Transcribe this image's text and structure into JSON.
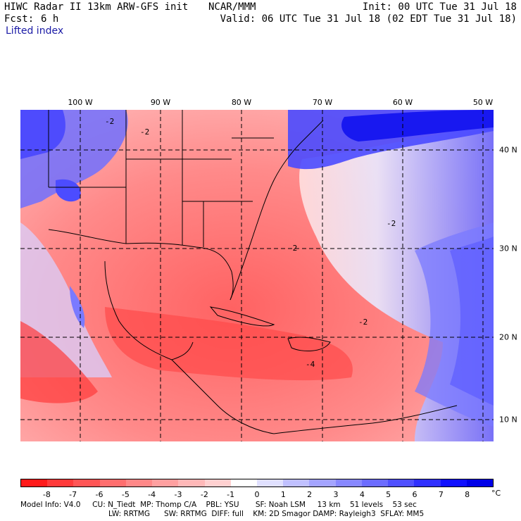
{
  "header": {
    "title": "HIWC Radar II 13km ARW-GFS init",
    "org": "NCAR/MMM",
    "init": "Init: 00 UTC Tue 31 Jul 18",
    "fcst_label": "Fcst:",
    "fcst_value": "6 h",
    "valid": "Valid: 06 UTC Tue 31 Jul 18 (02 EDT Tue 31 Jul 18)",
    "field": "Lifted index"
  },
  "map": {
    "lon_labels": [
      "100 W",
      "90 W",
      "80 W",
      "70 W",
      "60 W",
      "50 W"
    ],
    "lat_labels": [
      "40 N",
      "30 N",
      "20 N",
      "10 N"
    ],
    "contour_labels": [
      "-2",
      "-2",
      "-2",
      "-2",
      "-2",
      "-4"
    ]
  },
  "colorbar": {
    "labels": [
      "-8",
      "-7",
      "-6",
      "-5",
      "-4",
      "-3",
      "-2",
      "-1",
      "0",
      "1",
      "2",
      "3",
      "4",
      "5",
      "6",
      "7",
      "8"
    ],
    "unit": "°C",
    "colors": [
      "#ff1a1a",
      "#ff3a3a",
      "#ff5555",
      "#ff6e6e",
      "#ff8888",
      "#ffa0a0",
      "#ffb8b8",
      "#ffd0d0",
      "#ffffff",
      "#e0e0ff",
      "#c0c0ff",
      "#a4a4ff",
      "#8888ff",
      "#6c6cff",
      "#5050ff",
      "#3030ff",
      "#1010ff",
      "#0000e8"
    ]
  },
  "footer": {
    "line1": "Model Info: V4.0     CU: N_Tiedt  MP: Thomp C/A    PBL: YSU       SF: Noah LSM     13 km    51 levels    53 sec",
    "line2": "LW: RRTMG      SW: RRTMG  DIFF: full    KM: 2D Smagor DAMP: Rayleigh3  SFLAY: MM5"
  }
}
